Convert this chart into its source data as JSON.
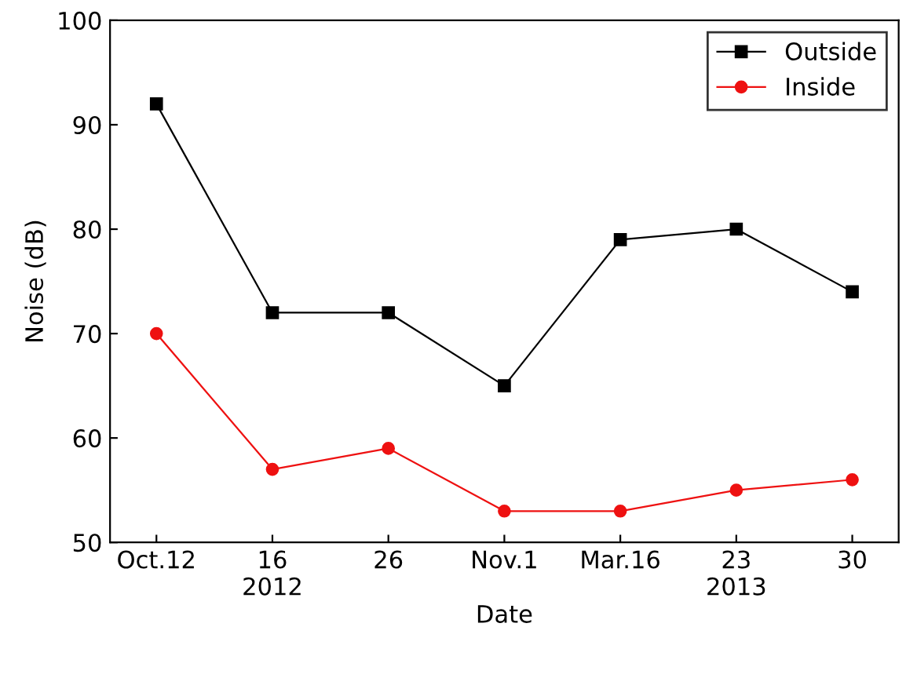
{
  "chart_data": {
    "type": "line",
    "xlabel": "Date",
    "ylabel": "Noise (dB)",
    "categories": [
      "Oct.12",
      "16\n2012",
      "26",
      "Nov.1",
      "Mar.16",
      "23\n2013",
      "30"
    ],
    "series": [
      {
        "name": "Outside",
        "color": "#000000",
        "marker": "square",
        "values": [
          92,
          72,
          72,
          65,
          79,
          80,
          74
        ]
      },
      {
        "name": "Inside",
        "color": "#ee1111",
        "marker": "circle",
        "values": [
          70,
          57,
          59,
          53,
          53,
          55,
          56
        ]
      }
    ],
    "ylim": [
      50,
      100
    ],
    "yticks": [
      50,
      60,
      70,
      80,
      90,
      100
    ],
    "grid": false,
    "legend": "top right",
    "line_style": "solid"
  }
}
